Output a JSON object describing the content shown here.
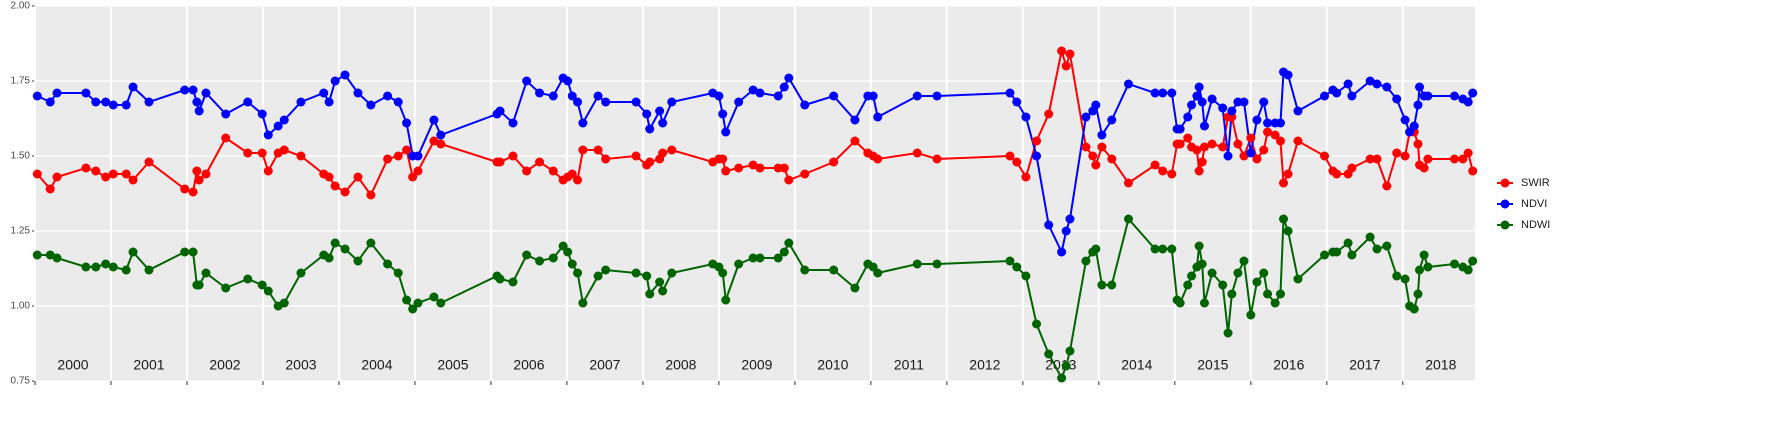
{
  "chart_data": {
    "type": "line",
    "x": [
      2000.03,
      2000.2,
      2000.29,
      2000.67,
      2000.8,
      2000.93,
      2001.03,
      2001.2,
      2001.29,
      2001.5,
      2001.97,
      2002.08,
      2002.13,
      2002.16,
      2002.25,
      2002.51,
      2002.8,
      2002.99,
      2003.07,
      2003.2,
      2003.28,
      2003.5,
      2003.8,
      2003.87,
      2003.95,
      2004.08,
      2004.25,
      2004.42,
      2004.64,
      2004.78,
      2004.89,
      2004.97,
      2005.04,
      2005.25,
      2005.34,
      2006.08,
      2006.12,
      2006.29,
      2006.47,
      2006.64,
      2006.82,
      2006.95,
      2007.01,
      2007.07,
      2007.14,
      2007.21,
      2007.41,
      2007.51,
      2007.91,
      2008.05,
      2008.09,
      2008.22,
      2008.26,
      2008.38,
      2008.92,
      2009.0,
      2009.05,
      2009.09,
      2009.26,
      2009.45,
      2009.54,
      2009.78,
      2009.86,
      2009.92,
      2010.13,
      2010.51,
      2010.79,
      2010.96,
      2011.03,
      2011.09,
      2011.61,
      2011.87,
      2012.83,
      2012.92,
      2013.04,
      2013.18,
      2013.34,
      2013.51,
      2013.57,
      2013.62,
      2013.83,
      2013.92,
      2013.96,
      2014.04,
      2014.17,
      2014.39,
      2014.74,
      2014.84,
      2014.96,
      2015.03,
      2015.07,
      2015.17,
      2015.22,
      2015.29,
      2015.32,
      2015.36,
      2015.39,
      2015.49,
      2015.63,
      2015.7,
      2015.75,
      2015.83,
      2015.91,
      2016.0,
      2016.08,
      2016.17,
      2016.22,
      2016.32,
      2016.39,
      2016.43,
      2016.49,
      2016.62,
      2016.97,
      2017.08,
      2017.13,
      2017.28,
      2017.33,
      2017.57,
      2017.66,
      2017.79,
      2017.92,
      2018.03,
      2018.09,
      2018.15,
      2018.2,
      2018.22,
      2018.28,
      2018.33,
      2018.68,
      2018.79,
      2018.86,
      2018.92
    ],
    "series": [
      {
        "name": "SWIR",
        "color": "#ff0000",
        "values": [
          1.44,
          1.39,
          1.43,
          1.46,
          1.45,
          1.43,
          1.44,
          1.44,
          1.42,
          1.48,
          1.39,
          1.38,
          1.45,
          1.42,
          1.44,
          1.56,
          1.51,
          1.51,
          1.45,
          1.51,
          1.52,
          1.5,
          1.44,
          1.43,
          1.4,
          1.38,
          1.43,
          1.37,
          1.49,
          1.5,
          1.52,
          1.43,
          1.45,
          1.55,
          1.54,
          1.48,
          1.48,
          1.5,
          1.45,
          1.48,
          1.45,
          1.42,
          1.43,
          1.44,
          1.42,
          1.52,
          1.52,
          1.49,
          1.5,
          1.47,
          1.48,
          1.49,
          1.51,
          1.52,
          1.48,
          1.49,
          1.49,
          1.45,
          1.46,
          1.47,
          1.46,
          1.46,
          1.46,
          1.42,
          1.44,
          1.48,
          1.55,
          1.51,
          1.5,
          1.49,
          1.51,
          1.49,
          1.5,
          1.48,
          1.43,
          1.55,
          1.64,
          1.85,
          1.8,
          1.84,
          1.53,
          1.5,
          1.47,
          1.53,
          1.49,
          1.41,
          1.47,
          1.45,
          1.44,
          1.54,
          1.54,
          1.56,
          1.53,
          1.52,
          1.45,
          1.48,
          1.53,
          1.54,
          1.53,
          1.63,
          1.63,
          1.54,
          1.5,
          1.56,
          1.49,
          1.52,
          1.58,
          1.57,
          1.55,
          1.41,
          1.44,
          1.55,
          1.5,
          1.45,
          1.44,
          1.44,
          1.46,
          1.49,
          1.49,
          1.4,
          1.51,
          1.5,
          1.58,
          1.58,
          1.54,
          1.47,
          1.46,
          1.49,
          1.49,
          1.49,
          1.51,
          1.45
        ]
      },
      {
        "name": "NDVI",
        "color": "#0000ff",
        "values": [
          1.7,
          1.68,
          1.71,
          1.71,
          1.68,
          1.68,
          1.67,
          1.67,
          1.73,
          1.68,
          1.72,
          1.72,
          1.68,
          1.65,
          1.71,
          1.64,
          1.68,
          1.64,
          1.57,
          1.6,
          1.62,
          1.68,
          1.71,
          1.68,
          1.75,
          1.77,
          1.71,
          1.67,
          1.7,
          1.68,
          1.61,
          1.5,
          1.5,
          1.62,
          1.57,
          1.64,
          1.65,
          1.61,
          1.75,
          1.71,
          1.7,
          1.76,
          1.75,
          1.7,
          1.68,
          1.61,
          1.7,
          1.68,
          1.68,
          1.64,
          1.59,
          1.65,
          1.61,
          1.68,
          1.71,
          1.7,
          1.64,
          1.58,
          1.68,
          1.72,
          1.71,
          1.7,
          1.73,
          1.76,
          1.67,
          1.7,
          1.62,
          1.7,
          1.7,
          1.63,
          1.7,
          1.7,
          1.71,
          1.68,
          1.63,
          1.5,
          1.27,
          1.18,
          1.25,
          1.29,
          1.63,
          1.65,
          1.67,
          1.57,
          1.62,
          1.74,
          1.71,
          1.71,
          1.71,
          1.59,
          1.59,
          1.63,
          1.67,
          1.7,
          1.73,
          1.68,
          1.6,
          1.69,
          1.66,
          1.5,
          1.65,
          1.68,
          1.68,
          1.51,
          1.62,
          1.68,
          1.61,
          1.61,
          1.61,
          1.78,
          1.77,
          1.65,
          1.7,
          1.72,
          1.71,
          1.74,
          1.7,
          1.75,
          1.74,
          1.73,
          1.69,
          1.62,
          1.58,
          1.6,
          1.67,
          1.73,
          1.7,
          1.7,
          1.7,
          1.69,
          1.68,
          1.71
        ]
      },
      {
        "name": "NDWI",
        "color": "#006400",
        "values": [
          1.17,
          1.17,
          1.16,
          1.13,
          1.13,
          1.14,
          1.13,
          1.12,
          1.18,
          1.12,
          1.18,
          1.18,
          1.07,
          1.07,
          1.11,
          1.06,
          1.09,
          1.07,
          1.05,
          1.0,
          1.01,
          1.11,
          1.17,
          1.16,
          1.21,
          1.19,
          1.15,
          1.21,
          1.14,
          1.11,
          1.02,
          0.99,
          1.01,
          1.03,
          1.01,
          1.1,
          1.09,
          1.08,
          1.17,
          1.15,
          1.16,
          1.2,
          1.18,
          1.14,
          1.11,
          1.01,
          1.1,
          1.12,
          1.11,
          1.1,
          1.04,
          1.08,
          1.05,
          1.11,
          1.14,
          1.13,
          1.11,
          1.02,
          1.14,
          1.16,
          1.16,
          1.16,
          1.18,
          1.21,
          1.12,
          1.12,
          1.06,
          1.14,
          1.13,
          1.11,
          1.14,
          1.14,
          1.15,
          1.13,
          1.1,
          0.94,
          0.84,
          0.76,
          0.8,
          0.85,
          1.15,
          1.18,
          1.19,
          1.07,
          1.07,
          1.29,
          1.19,
          1.19,
          1.19,
          1.02,
          1.01,
          1.07,
          1.1,
          1.13,
          1.2,
          1.14,
          1.01,
          1.11,
          1.07,
          0.91,
          1.04,
          1.11,
          1.15,
          0.97,
          1.08,
          1.11,
          1.04,
          1.01,
          1.04,
          1.29,
          1.25,
          1.09,
          1.17,
          1.18,
          1.18,
          1.21,
          1.17,
          1.23,
          1.19,
          1.2,
          1.1,
          1.09,
          1.0,
          0.99,
          1.04,
          1.12,
          1.17,
          1.13,
          1.14,
          1.13,
          1.12,
          1.15
        ]
      }
    ],
    "xlim": [
      2000,
      2018.95
    ],
    "xticks": [
      2000,
      2001,
      2002,
      2003,
      2004,
      2005,
      2006,
      2007,
      2008,
      2009,
      2010,
      2011,
      2012,
      2013,
      2014,
      2015,
      2016,
      2017,
      2018
    ],
    "year_labels": [
      "2000",
      "2001",
      "2002",
      "2003",
      "2004",
      "2005",
      "2006",
      "2007",
      "2008",
      "2009",
      "2010",
      "2011",
      "2012",
      "2013",
      "2014",
      "2015",
      "2016",
      "2017",
      "2018"
    ],
    "ylim": [
      0.75,
      2.0
    ],
    "yticks": [
      0.75,
      {
        "value": 1.0,
        "label": "1.00"
      },
      1.25,
      {
        "value": 1.5,
        "label": "1.50"
      },
      1.75,
      {
        "value": 2.0,
        "label": "2.00"
      }
    ],
    "grid": true,
    "legend": "right"
  }
}
